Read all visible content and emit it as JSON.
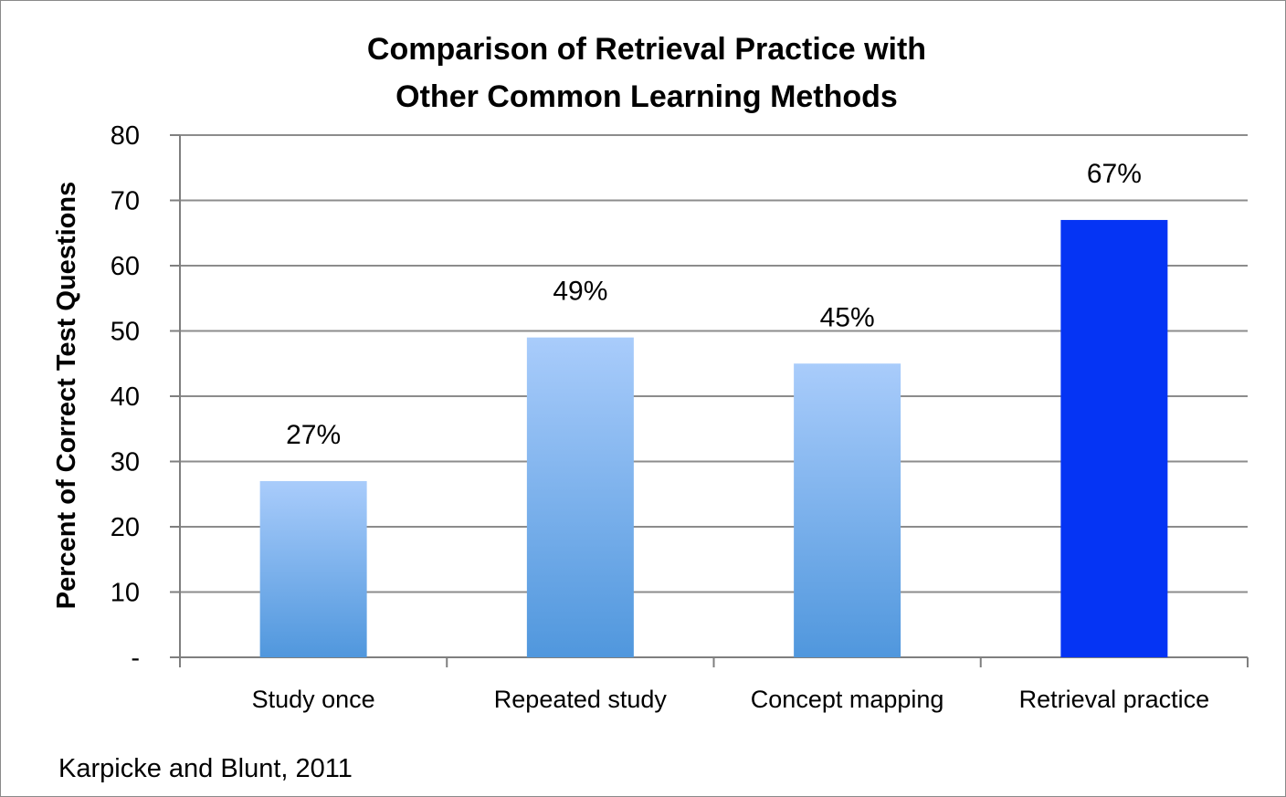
{
  "chart_data": {
    "type": "bar",
    "title_lines": [
      "Comparison of Retrieval Practice with",
      "Other Common Learning Methods"
    ],
    "ylabel": "Percent of Correct Test Questions",
    "xlabel": "",
    "categories": [
      "Study once",
      "Repeated study",
      "Concept mapping",
      "Retrieval practice"
    ],
    "values": [
      27,
      49,
      45,
      67
    ],
    "data_labels": [
      "27%",
      "49%",
      "45%",
      "67%"
    ],
    "highlight_index": 3,
    "ylim": [
      0,
      80
    ],
    "y_ticks": [
      {
        "value": 0,
        "label": "-"
      },
      {
        "value": 10,
        "label": "10"
      },
      {
        "value": 20,
        "label": "20"
      },
      {
        "value": 30,
        "label": "30"
      },
      {
        "value": 40,
        "label": "40"
      },
      {
        "value": 50,
        "label": "50"
      },
      {
        "value": 60,
        "label": "60"
      },
      {
        "value": 70,
        "label": "70"
      },
      {
        "value": 80,
        "label": "80"
      }
    ],
    "grid": true,
    "legend": "none",
    "colors": {
      "bar_gradient_top": "#a9ccfb",
      "bar_gradient_bottom": "#5097dd",
      "highlight_bar": "#0534f4",
      "gridline": "#8c8c8c",
      "axis": "#7f7f7f"
    }
  },
  "source_note": "Karpicke and Blunt, 2011"
}
